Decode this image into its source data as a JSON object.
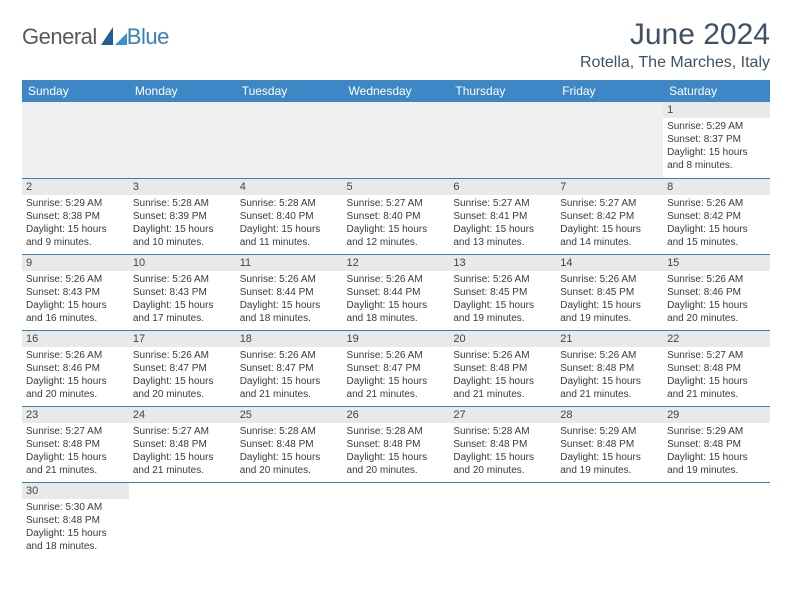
{
  "logo": {
    "text1": "General",
    "text2": "Blue"
  },
  "title": "June 2024",
  "location": "Rotella, The Marches, Italy",
  "colors": {
    "header_bg": "#3d87c7",
    "header_text": "#ffffff",
    "rule": "#3d7fb0",
    "daynum_bg": "#e9e9e9",
    "title_color": "#3f5265",
    "logo_gray": "#555a5f",
    "logo_blue": "#3a7fb8"
  },
  "weekdays": [
    "Sunday",
    "Monday",
    "Tuesday",
    "Wednesday",
    "Thursday",
    "Friday",
    "Saturday"
  ],
  "weeks": [
    [
      null,
      null,
      null,
      null,
      null,
      null,
      {
        "d": "1",
        "sr": "5:29 AM",
        "ss": "8:37 PM",
        "dl": "15 hours and 8 minutes."
      }
    ],
    [
      {
        "d": "2",
        "sr": "5:29 AM",
        "ss": "8:38 PM",
        "dl": "15 hours and 9 minutes."
      },
      {
        "d": "3",
        "sr": "5:28 AM",
        "ss": "8:39 PM",
        "dl": "15 hours and 10 minutes."
      },
      {
        "d": "4",
        "sr": "5:28 AM",
        "ss": "8:40 PM",
        "dl": "15 hours and 11 minutes."
      },
      {
        "d": "5",
        "sr": "5:27 AM",
        "ss": "8:40 PM",
        "dl": "15 hours and 12 minutes."
      },
      {
        "d": "6",
        "sr": "5:27 AM",
        "ss": "8:41 PM",
        "dl": "15 hours and 13 minutes."
      },
      {
        "d": "7",
        "sr": "5:27 AM",
        "ss": "8:42 PM",
        "dl": "15 hours and 14 minutes."
      },
      {
        "d": "8",
        "sr": "5:26 AM",
        "ss": "8:42 PM",
        "dl": "15 hours and 15 minutes."
      }
    ],
    [
      {
        "d": "9",
        "sr": "5:26 AM",
        "ss": "8:43 PM",
        "dl": "15 hours and 16 minutes."
      },
      {
        "d": "10",
        "sr": "5:26 AM",
        "ss": "8:43 PM",
        "dl": "15 hours and 17 minutes."
      },
      {
        "d": "11",
        "sr": "5:26 AM",
        "ss": "8:44 PM",
        "dl": "15 hours and 18 minutes."
      },
      {
        "d": "12",
        "sr": "5:26 AM",
        "ss": "8:44 PM",
        "dl": "15 hours and 18 minutes."
      },
      {
        "d": "13",
        "sr": "5:26 AM",
        "ss": "8:45 PM",
        "dl": "15 hours and 19 minutes."
      },
      {
        "d": "14",
        "sr": "5:26 AM",
        "ss": "8:45 PM",
        "dl": "15 hours and 19 minutes."
      },
      {
        "d": "15",
        "sr": "5:26 AM",
        "ss": "8:46 PM",
        "dl": "15 hours and 20 minutes."
      }
    ],
    [
      {
        "d": "16",
        "sr": "5:26 AM",
        "ss": "8:46 PM",
        "dl": "15 hours and 20 minutes."
      },
      {
        "d": "17",
        "sr": "5:26 AM",
        "ss": "8:47 PM",
        "dl": "15 hours and 20 minutes."
      },
      {
        "d": "18",
        "sr": "5:26 AM",
        "ss": "8:47 PM",
        "dl": "15 hours and 21 minutes."
      },
      {
        "d": "19",
        "sr": "5:26 AM",
        "ss": "8:47 PM",
        "dl": "15 hours and 21 minutes."
      },
      {
        "d": "20",
        "sr": "5:26 AM",
        "ss": "8:48 PM",
        "dl": "15 hours and 21 minutes."
      },
      {
        "d": "21",
        "sr": "5:26 AM",
        "ss": "8:48 PM",
        "dl": "15 hours and 21 minutes."
      },
      {
        "d": "22",
        "sr": "5:27 AM",
        "ss": "8:48 PM",
        "dl": "15 hours and 21 minutes."
      }
    ],
    [
      {
        "d": "23",
        "sr": "5:27 AM",
        "ss": "8:48 PM",
        "dl": "15 hours and 21 minutes."
      },
      {
        "d": "24",
        "sr": "5:27 AM",
        "ss": "8:48 PM",
        "dl": "15 hours and 21 minutes."
      },
      {
        "d": "25",
        "sr": "5:28 AM",
        "ss": "8:48 PM",
        "dl": "15 hours and 20 minutes."
      },
      {
        "d": "26",
        "sr": "5:28 AM",
        "ss": "8:48 PM",
        "dl": "15 hours and 20 minutes."
      },
      {
        "d": "27",
        "sr": "5:28 AM",
        "ss": "8:48 PM",
        "dl": "15 hours and 20 minutes."
      },
      {
        "d": "28",
        "sr": "5:29 AM",
        "ss": "8:48 PM",
        "dl": "15 hours and 19 minutes."
      },
      {
        "d": "29",
        "sr": "5:29 AM",
        "ss": "8:48 PM",
        "dl": "15 hours and 19 minutes."
      }
    ],
    [
      {
        "d": "30",
        "sr": "5:30 AM",
        "ss": "8:48 PM",
        "dl": "15 hours and 18 minutes."
      },
      null,
      null,
      null,
      null,
      null,
      null
    ]
  ],
  "labels": {
    "sunrise": "Sunrise:",
    "sunset": "Sunset:",
    "daylight": "Daylight:"
  }
}
